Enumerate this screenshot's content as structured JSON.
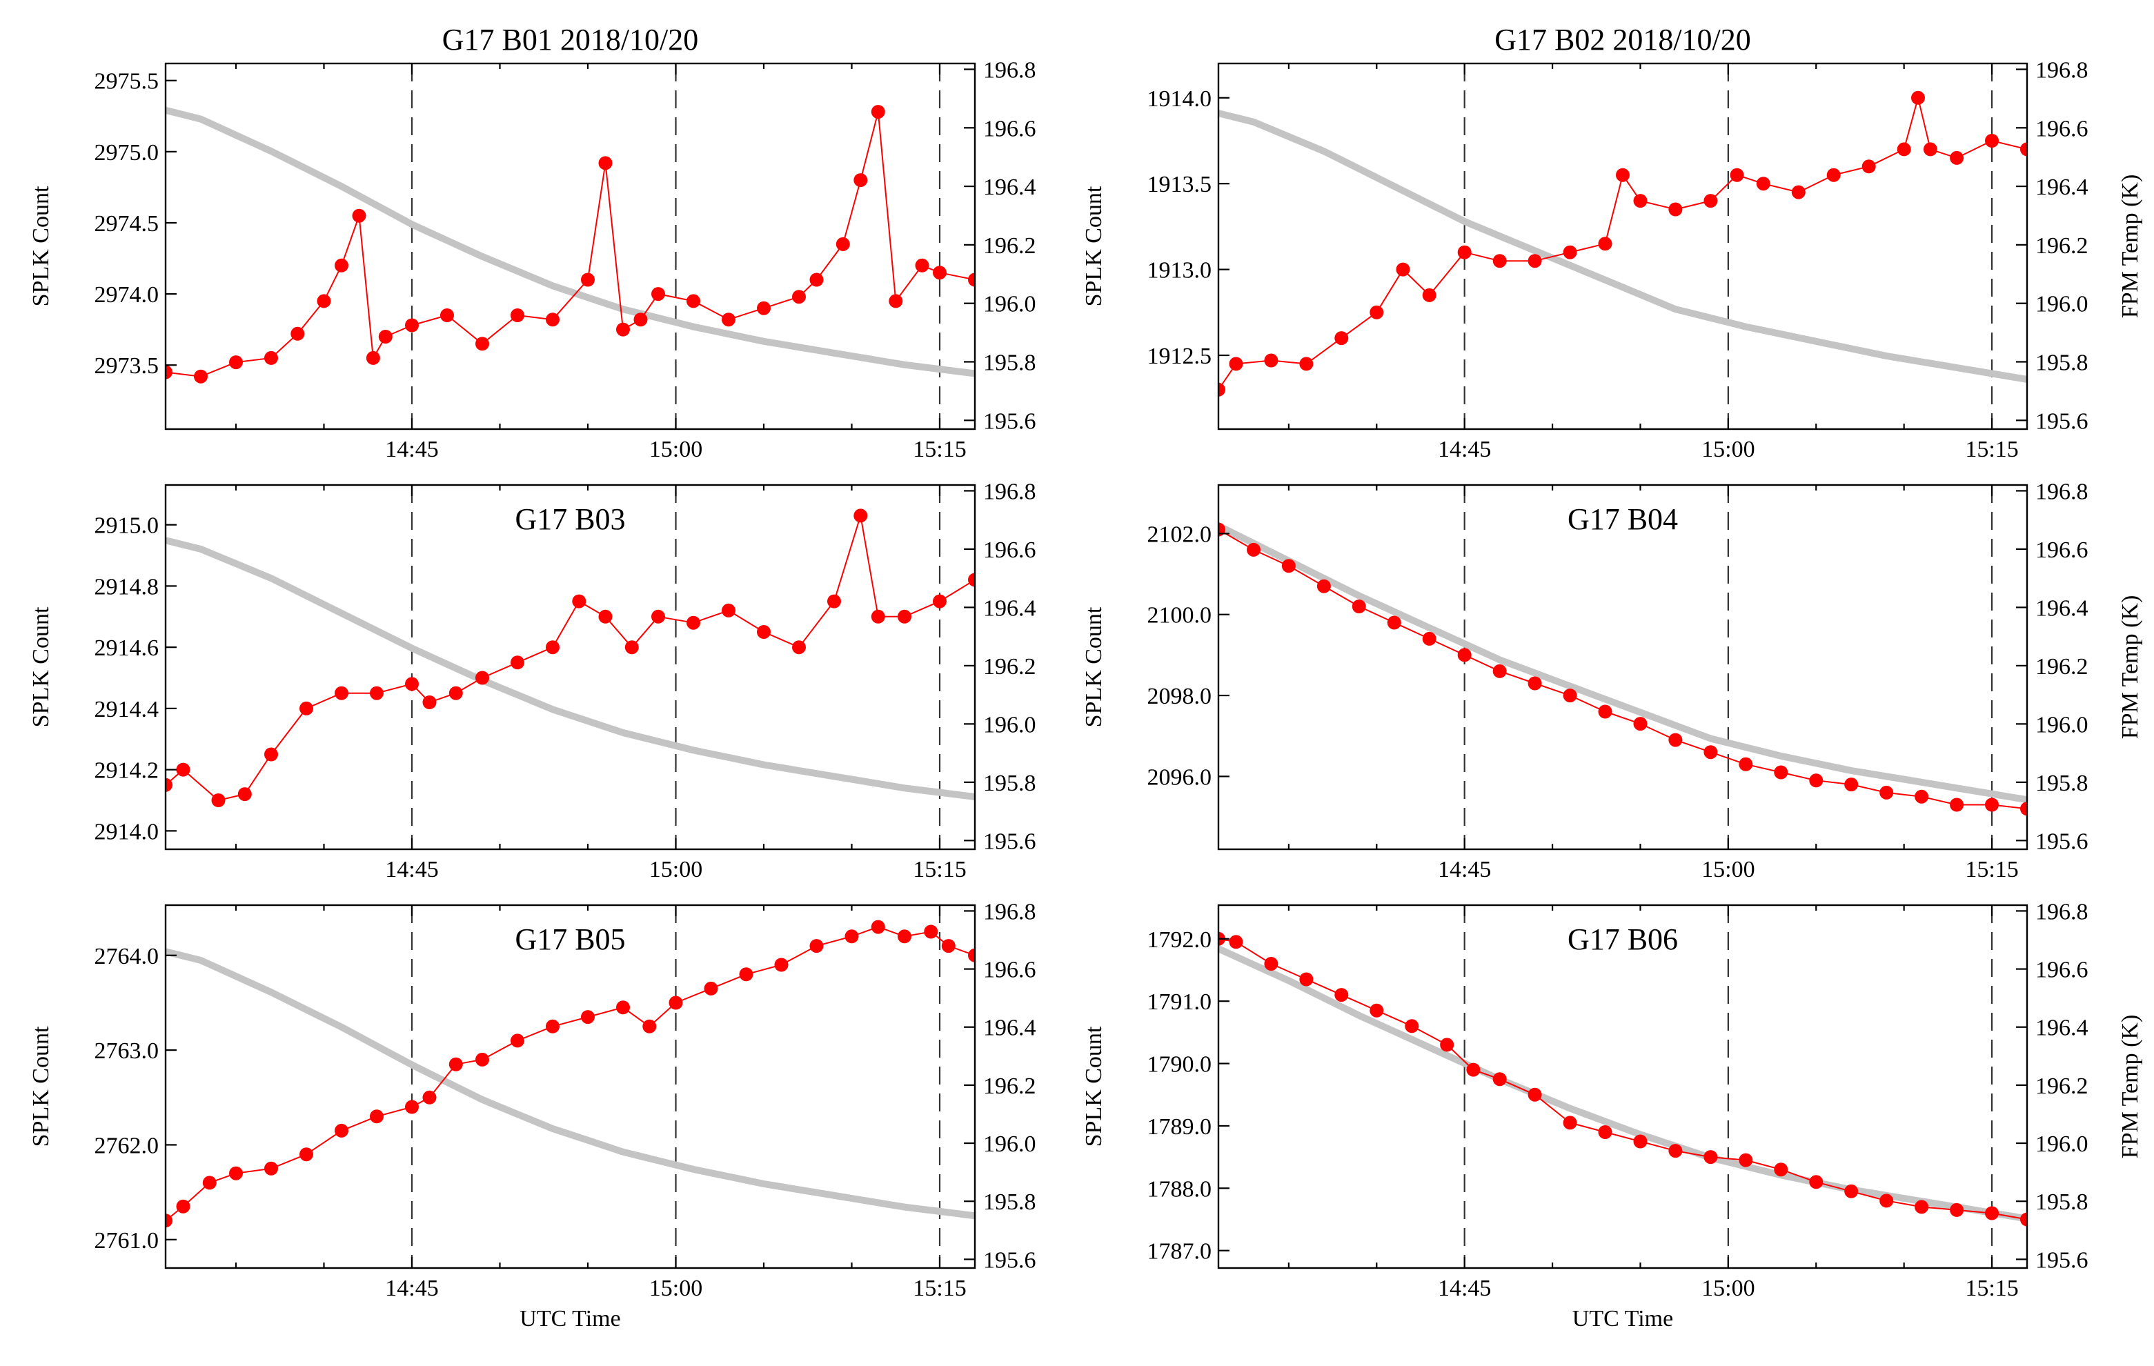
{
  "figure": {
    "xlabel": "UTC Time",
    "ylabel_left": "SPLK Count",
    "ylabel_right": "FPM Temp (K)",
    "colors": {
      "count": "#ff0000",
      "temp": "#c4c4c4",
      "axis": "#000000",
      "vline": "#333333"
    }
  },
  "chart_data": [
    {
      "type": "line",
      "id": "B01",
      "title": "G17 B01 2018/10/20",
      "xlim": [
        871,
        917
      ],
      "x_ticks": [
        885,
        900,
        915
      ],
      "x_tick_labels": [
        "14:45",
        "15:00",
        "15:15"
      ],
      "vlines": [
        885,
        900,
        915
      ],
      "ylim": [
        2973.05,
        2975.62
      ],
      "y_ticks": [
        2973.5,
        2974.0,
        2974.5,
        2975.0,
        2975.5
      ],
      "y_tick_labels": [
        "2973.5",
        "2974.0",
        "2974.5",
        "2975.0",
        "2975.5"
      ],
      "y2lim": [
        195.57,
        196.82
      ],
      "y2_ticks": [
        195.6,
        195.8,
        196.0,
        196.2,
        196.4,
        196.6,
        196.8
      ],
      "y2_tick_labels": [
        "195.6",
        "195.8",
        "196.0",
        "196.2",
        "196.4",
        "196.6",
        "196.8"
      ],
      "show_y2label": false,
      "show_xlabel": false,
      "temp": {
        "x": [
          871,
          873,
          877,
          881,
          885,
          889,
          893,
          897,
          901,
          905,
          909,
          913,
          917
        ],
        "y": [
          196.66,
          196.63,
          196.52,
          196.4,
          196.27,
          196.16,
          196.06,
          195.98,
          195.92,
          195.87,
          195.83,
          195.79,
          195.76
        ]
      },
      "series": [
        {
          "name": "SPLK Count",
          "x": [
            871,
            873,
            875,
            877,
            878.5,
            880,
            881,
            882,
            882.8,
            883.5,
            885,
            887,
            889,
            891,
            893,
            895,
            896,
            897,
            898,
            899,
            901,
            903,
            905,
            907,
            908,
            909.5,
            910.5,
            911.5,
            912.5,
            914,
            915,
            917
          ],
          "y": [
            2973.45,
            2973.42,
            2973.52,
            2973.55,
            2973.72,
            2973.95,
            2974.2,
            2974.55,
            2973.55,
            2973.7,
            2973.78,
            2973.85,
            2973.65,
            2973.85,
            2973.82,
            2974.1,
            2974.92,
            2973.75,
            2973.82,
            2974.0,
            2973.95,
            2973.82,
            2973.9,
            2973.98,
            2974.1,
            2974.35,
            2974.8,
            2975.28,
            2973.95,
            2974.2,
            2974.15,
            2974.1
          ]
        }
      ]
    },
    {
      "type": "line",
      "id": "B02",
      "title": "G17 B02 2018/10/20",
      "xlim": [
        871,
        917
      ],
      "x_ticks": [
        885,
        900,
        915
      ],
      "x_tick_labels": [
        "14:45",
        "15:00",
        "15:15"
      ],
      "vlines": [
        885,
        900,
        915
      ],
      "ylim": [
        1912.07,
        1914.2
      ],
      "y_ticks": [
        1912.5,
        1913.0,
        1913.5,
        1914.0
      ],
      "y_tick_labels": [
        "1912.5",
        "1913.0",
        "1913.5",
        "1914.0"
      ],
      "y2lim": [
        195.57,
        196.82
      ],
      "y2_ticks": [
        195.6,
        195.8,
        196.0,
        196.2,
        196.4,
        196.6,
        196.8
      ],
      "y2_tick_labels": [
        "195.6",
        "195.8",
        "196.0",
        "196.2",
        "196.4",
        "196.6",
        "196.8"
      ],
      "show_y2label": true,
      "show_xlabel": false,
      "temp": {
        "x": [
          871,
          873,
          877,
          881,
          885,
          889,
          893,
          897,
          901,
          905,
          909,
          913,
          917
        ],
        "y": [
          196.65,
          196.62,
          196.52,
          196.4,
          196.28,
          196.18,
          196.08,
          195.98,
          195.92,
          195.87,
          195.82,
          195.78,
          195.74
        ]
      },
      "series": [
        {
          "name": "SPLK Count",
          "x": [
            871,
            872,
            874,
            876,
            878,
            880,
            881.5,
            883,
            885,
            887,
            889,
            891,
            893,
            894,
            895,
            897,
            899,
            900.5,
            902,
            904,
            906,
            908,
            910,
            910.8,
            911.5,
            913,
            915,
            917
          ],
          "y": [
            1912.3,
            1912.45,
            1912.47,
            1912.45,
            1912.6,
            1912.75,
            1913.0,
            1912.85,
            1913.1,
            1913.05,
            1913.05,
            1913.1,
            1913.15,
            1913.55,
            1913.4,
            1913.35,
            1913.4,
            1913.55,
            1913.5,
            1913.45,
            1913.55,
            1913.6,
            1913.7,
            1914.0,
            1913.7,
            1913.65,
            1913.75,
            1913.7
          ]
        }
      ]
    },
    {
      "type": "line",
      "id": "B03",
      "title": "G17 B03",
      "xlim": [
        871,
        917
      ],
      "x_ticks": [
        885,
        900,
        915
      ],
      "x_tick_labels": [
        "14:45",
        "15:00",
        "15:15"
      ],
      "vlines": [
        885,
        900,
        915
      ],
      "ylim": [
        2913.94,
        2915.13
      ],
      "y_ticks": [
        2914.0,
        2914.2,
        2914.4,
        2914.6,
        2914.8,
        2915.0
      ],
      "y_tick_labels": [
        "2914.0",
        "2914.2",
        "2914.4",
        "2914.6",
        "2914.8",
        "2915.0"
      ],
      "y2lim": [
        195.57,
        196.82
      ],
      "y2_ticks": [
        195.6,
        195.8,
        196.0,
        196.2,
        196.4,
        196.6,
        196.8
      ],
      "y2_tick_labels": [
        "195.6",
        "195.8",
        "196.0",
        "196.2",
        "196.4",
        "196.6",
        "196.8"
      ],
      "show_y2label": false,
      "show_xlabel": false,
      "temp": {
        "x": [
          871,
          873,
          877,
          881,
          885,
          889,
          893,
          897,
          901,
          905,
          909,
          913,
          917
        ],
        "y": [
          196.63,
          196.6,
          196.5,
          196.38,
          196.26,
          196.15,
          196.05,
          195.97,
          195.91,
          195.86,
          195.82,
          195.78,
          195.75
        ]
      },
      "series": [
        {
          "name": "SPLK Count",
          "x": [
            871,
            872,
            874,
            875.5,
            877,
            879,
            881,
            883,
            885,
            886,
            887.5,
            889,
            891,
            893,
            894.5,
            896,
            897.5,
            899,
            901,
            903,
            905,
            907,
            909,
            910.5,
            911.5,
            913,
            915,
            917
          ],
          "y": [
            2914.15,
            2914.2,
            2914.1,
            2914.12,
            2914.25,
            2914.4,
            2914.45,
            2914.45,
            2914.48,
            2914.42,
            2914.45,
            2914.5,
            2914.55,
            2914.6,
            2914.75,
            2914.7,
            2914.6,
            2914.7,
            2914.68,
            2914.72,
            2914.65,
            2914.6,
            2914.75,
            2915.03,
            2914.7,
            2914.7,
            2914.75,
            2914.82
          ]
        }
      ]
    },
    {
      "type": "line",
      "id": "B04",
      "title": "G17 B04",
      "xlim": [
        871,
        917
      ],
      "x_ticks": [
        885,
        900,
        915
      ],
      "x_tick_labels": [
        "14:45",
        "15:00",
        "15:15"
      ],
      "vlines": [
        885,
        900,
        915
      ],
      "ylim": [
        2094.2,
        2103.2
      ],
      "y_ticks": [
        2096.0,
        2098.0,
        2100.0,
        2102.0
      ],
      "y_tick_labels": [
        "2096.0",
        "2098.0",
        "2100.0",
        "2102.0"
      ],
      "y2lim": [
        195.57,
        196.82
      ],
      "y2_ticks": [
        195.6,
        195.8,
        196.0,
        196.2,
        196.4,
        196.6,
        196.8
      ],
      "y2_tick_labels": [
        "195.6",
        "195.8",
        "196.0",
        "196.2",
        "196.4",
        "196.6",
        "196.8"
      ],
      "show_y2label": true,
      "show_xlabel": false,
      "temp": {
        "x": [
          871,
          875,
          879,
          883,
          887,
          891,
          895,
          899,
          903,
          907,
          911,
          915,
          917
        ],
        "y": [
          196.68,
          196.56,
          196.44,
          196.33,
          196.22,
          196.13,
          196.04,
          195.95,
          195.89,
          195.84,
          195.8,
          195.76,
          195.74
        ]
      },
      "series": [
        {
          "name": "SPLK Count",
          "x": [
            871,
            873,
            875,
            877,
            879,
            881,
            883,
            885,
            887,
            889,
            891,
            893,
            895,
            897,
            899,
            901,
            903,
            905,
            907,
            909,
            911,
            913,
            915,
            917
          ],
          "y": [
            2102.1,
            2101.6,
            2101.2,
            2100.7,
            2100.2,
            2099.8,
            2099.4,
            2099.0,
            2098.6,
            2098.3,
            2098.0,
            2097.6,
            2097.3,
            2096.9,
            2096.6,
            2096.3,
            2096.1,
            2095.9,
            2095.8,
            2095.6,
            2095.5,
            2095.3,
            2095.3,
            2095.2
          ]
        }
      ]
    },
    {
      "type": "line",
      "id": "B05",
      "title": "G17 B05",
      "xlim": [
        871,
        917
      ],
      "x_ticks": [
        885,
        900,
        915
      ],
      "x_tick_labels": [
        "14:45",
        "15:00",
        "15:15"
      ],
      "vlines": [
        885,
        900,
        915
      ],
      "ylim": [
        2760.7,
        2764.53
      ],
      "y_ticks": [
        2761.0,
        2762.0,
        2763.0,
        2764.0
      ],
      "y_tick_labels": [
        "2761.0",
        "2762.0",
        "2763.0",
        "2764.0"
      ],
      "y2lim": [
        195.57,
        196.82
      ],
      "y2_ticks": [
        195.6,
        195.8,
        196.0,
        196.2,
        196.4,
        196.6,
        196.8
      ],
      "y2_tick_labels": [
        "195.6",
        "195.8",
        "196.0",
        "196.2",
        "196.4",
        "196.6",
        "196.8"
      ],
      "show_y2label": false,
      "show_xlabel": true,
      "temp": {
        "x": [
          871,
          873,
          877,
          881,
          885,
          889,
          893,
          897,
          901,
          905,
          909,
          913,
          917
        ],
        "y": [
          196.66,
          196.63,
          196.52,
          196.4,
          196.27,
          196.15,
          196.05,
          195.97,
          195.91,
          195.86,
          195.82,
          195.78,
          195.75
        ]
      },
      "series": [
        {
          "name": "SPLK Count",
          "x": [
            871,
            872,
            873.5,
            875,
            877,
            879,
            881,
            883,
            885,
            886,
            887.5,
            889,
            891,
            893,
            895,
            897,
            898.5,
            900,
            902,
            904,
            906,
            908,
            910,
            911.5,
            913,
            914.5,
            915.5,
            917
          ],
          "y": [
            2761.2,
            2761.35,
            2761.6,
            2761.7,
            2761.75,
            2761.9,
            2762.15,
            2762.3,
            2762.4,
            2762.5,
            2762.85,
            2762.9,
            2763.1,
            2763.25,
            2763.35,
            2763.45,
            2763.25,
            2763.5,
            2763.65,
            2763.8,
            2763.9,
            2764.1,
            2764.2,
            2764.3,
            2764.2,
            2764.25,
            2764.1,
            2764.0
          ]
        }
      ]
    },
    {
      "type": "line",
      "id": "B06",
      "title": "G17 B06",
      "xlim": [
        871,
        917
      ],
      "x_ticks": [
        885,
        900,
        915
      ],
      "x_tick_labels": [
        "14:45",
        "15:00",
        "15:15"
      ],
      "vlines": [
        885,
        900,
        915
      ],
      "ylim": [
        1786.72,
        1792.54
      ],
      "y_ticks": [
        1787.0,
        1788.0,
        1789.0,
        1790.0,
        1791.0,
        1792.0
      ],
      "y_tick_labels": [
        "1787.0",
        "1788.0",
        "1789.0",
        "1790.0",
        "1791.0",
        "1792.0"
      ],
      "y2lim": [
        195.57,
        196.82
      ],
      "y2_ticks": [
        195.6,
        195.8,
        196.0,
        196.2,
        196.4,
        196.6,
        196.8
      ],
      "y2_tick_labels": [
        "195.6",
        "195.8",
        "196.0",
        "196.2",
        "196.4",
        "196.6",
        "196.8"
      ],
      "show_y2label": true,
      "show_xlabel": true,
      "temp": {
        "x": [
          871,
          875,
          879,
          883,
          887,
          891,
          895,
          899,
          903,
          907,
          911,
          915,
          917
        ],
        "y": [
          196.67,
          196.56,
          196.44,
          196.33,
          196.22,
          196.12,
          196.03,
          195.95,
          195.89,
          195.84,
          195.8,
          195.76,
          195.74
        ]
      },
      "series": [
        {
          "name": "SPLK Count",
          "x": [
            871,
            872,
            874,
            876,
            878,
            880,
            882,
            884,
            885.5,
            887,
            889,
            891,
            893,
            895,
            897,
            899,
            901,
            903,
            905,
            907,
            909,
            911,
            913,
            915,
            917
          ],
          "y": [
            1792.0,
            1791.95,
            1791.6,
            1791.35,
            1791.1,
            1790.85,
            1790.6,
            1790.3,
            1789.9,
            1789.75,
            1789.5,
            1789.05,
            1788.9,
            1788.75,
            1788.6,
            1788.5,
            1788.45,
            1788.3,
            1788.1,
            1787.95,
            1787.8,
            1787.7,
            1787.65,
            1787.6,
            1787.5
          ]
        }
      ]
    }
  ]
}
